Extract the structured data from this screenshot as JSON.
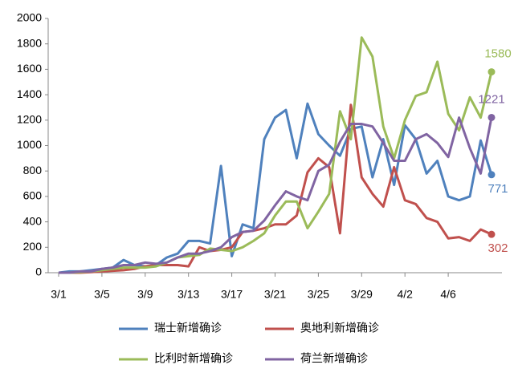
{
  "chart_data": {
    "type": "line",
    "categories": [
      "3/1",
      null,
      null,
      null,
      "3/5",
      null,
      null,
      null,
      "3/9",
      null,
      null,
      null,
      "3/13",
      null,
      null,
      null,
      "3/17",
      null,
      null,
      null,
      "3/21",
      null,
      null,
      null,
      "3/25",
      null,
      null,
      null,
      "3/29",
      null,
      null,
      null,
      "4/2",
      null,
      null,
      null,
      "4/6",
      null,
      null,
      null,
      null
    ],
    "series": [
      {
        "name": "瑞士新增确诊",
        "color": "#4f81bd",
        "values": [
          0,
          10,
          10,
          20,
          30,
          40,
          100,
          60,
          50,
          60,
          120,
          150,
          250,
          250,
          230,
          840,
          130,
          380,
          350,
          1050,
          1220,
          1280,
          900,
          1330,
          1090,
          1000,
          920,
          1130,
          1150,
          750,
          1050,
          690,
          1160,
          1050,
          780,
          880,
          600,
          570,
          600,
          1040,
          771
        ]
      },
      {
        "name": "奥地利新增确诊",
        "color": "#c0504d",
        "values": [
          0,
          0,
          0,
          5,
          10,
          15,
          20,
          30,
          50,
          60,
          60,
          60,
          50,
          200,
          170,
          180,
          200,
          320,
          330,
          350,
          380,
          380,
          450,
          790,
          900,
          830,
          310,
          1320,
          750,
          620,
          520,
          830,
          570,
          540,
          430,
          400,
          270,
          280,
          250,
          340,
          302
        ]
      },
      {
        "name": "比利时新增确诊",
        "color": "#9bbb59",
        "values": [
          0,
          0,
          5,
          10,
          20,
          30,
          40,
          40,
          40,
          50,
          80,
          120,
          130,
          140,
          190,
          180,
          170,
          200,
          250,
          310,
          450,
          560,
          560,
          350,
          480,
          620,
          1270,
          1050,
          1850,
          1700,
          1150,
          900,
          1200,
          1390,
          1420,
          1660,
          1250,
          1120,
          1380,
          1220,
          1580
        ]
      },
      {
        "name": "荷兰新增确诊",
        "color": "#8064a2",
        "values": [
          0,
          0,
          10,
          10,
          30,
          40,
          60,
          60,
          80,
          70,
          80,
          120,
          150,
          150,
          170,
          200,
          280,
          320,
          330,
          410,
          530,
          640,
          600,
          570,
          800,
          850,
          1030,
          1170,
          1170,
          1150,
          1020,
          880,
          880,
          1050,
          1090,
          1020,
          910,
          1220,
          980,
          780,
          1221
        ]
      }
    ],
    "ylim": [
      0,
      2000
    ],
    "yticks": [
      0,
      200,
      400,
      600,
      800,
      1000,
      1200,
      1400,
      1600,
      1800,
      2000
    ],
    "grid": false
  }
}
